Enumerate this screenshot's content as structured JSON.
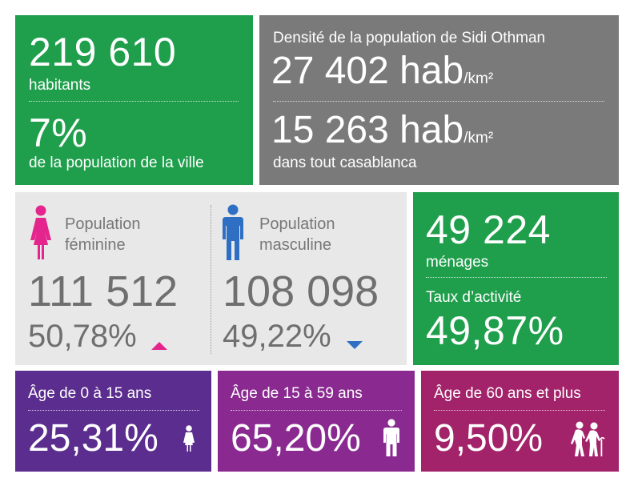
{
  "population": {
    "total": "219 610",
    "total_label": "habitants",
    "share": "7%",
    "share_label": "de la population de la ville"
  },
  "density": {
    "title": "Densité de la population de Sidi Othman",
    "local_value": "27 402 hab",
    "local_unit": "/km²",
    "city_value": "15 263 hab",
    "city_unit": "/km²",
    "city_label": "dans tout casablanca"
  },
  "gender": {
    "female": {
      "title_line1": "Population",
      "title_line2": "féminine",
      "count": "111 512",
      "percent": "50,78%",
      "trend": "up",
      "color": "#e4258e"
    },
    "male": {
      "title_line1": "Population",
      "title_line2": "masculine",
      "count": "108 098",
      "percent": "49,22%",
      "trend": "down",
      "color": "#2e6fc4"
    }
  },
  "households": {
    "count": "49 224",
    "label": "ménages",
    "activity_label": "Taux d’activité",
    "activity_rate": "49,87%"
  },
  "age_groups": [
    {
      "label": "Âge de 0 à 15 ans",
      "percent": "25,31%",
      "icon": "child-icon",
      "color": "#5b2d8e"
    },
    {
      "label": "Âge de 15 à 59 ans",
      "percent": "65,20%",
      "icon": "adult-icon",
      "color": "#8a2a91"
    },
    {
      "label": "Âge de 60 ans et plus",
      "percent": "9,50%",
      "icon": "elderly-couple-icon",
      "color": "#a3236a"
    }
  ],
  "colors": {
    "green": "#1f9f4c",
    "grey": "#7a7a7a",
    "light_grey": "#e8e8e8"
  }
}
